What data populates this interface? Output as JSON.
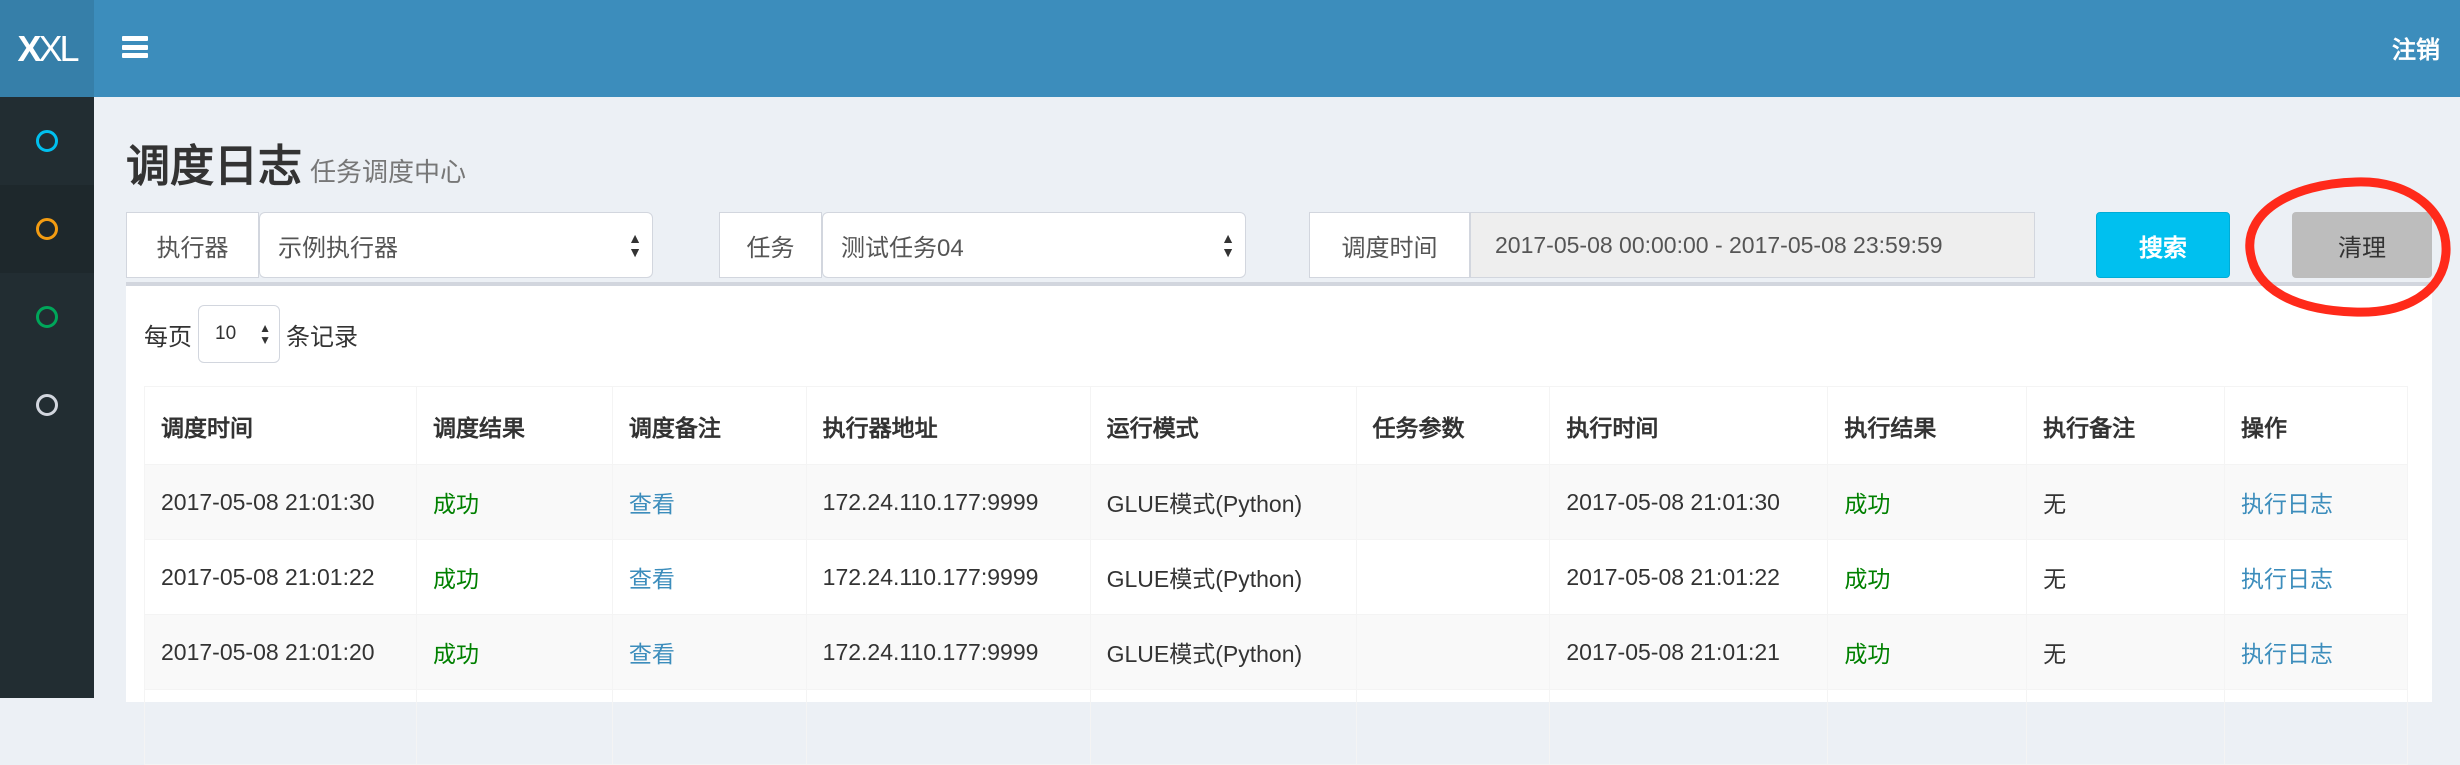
{
  "header": {
    "logo_bold": "X",
    "logo_rest": "XL",
    "logout": "注销"
  },
  "sidebar": {
    "items": [
      {
        "icon": "circle-icon",
        "color": "#00c0ef"
      },
      {
        "icon": "circle-icon",
        "color": "#f39c12"
      },
      {
        "icon": "circle-icon",
        "color": "#00a65a"
      },
      {
        "icon": "circle-icon",
        "color": "#d2d6de"
      }
    ]
  },
  "page": {
    "title": "调度日志",
    "subtitle": "任务调度中心"
  },
  "filters": {
    "executor_label": "执行器",
    "executor_value": "示例执行器",
    "job_label": "任务",
    "job_value": "测试任务04",
    "time_label": "调度时间",
    "time_value": "2017-05-08 00:00:00 - 2017-05-08 23:59:59",
    "search": "搜索",
    "clear": "清理"
  },
  "length": {
    "prefix": "每页",
    "value": "10",
    "suffix": "条记录"
  },
  "table": {
    "columns": [
      "调度时间",
      "调度结果",
      "调度备注",
      "执行器地址",
      "运行模式",
      "任务参数",
      "执行时间",
      "执行结果",
      "执行备注",
      "操作"
    ],
    "rows": [
      [
        "2017-05-08 21:01:30",
        "成功",
        "查看",
        "172.24.110.177:9999",
        "GLUE模式(Python)",
        "",
        "2017-05-08 21:01:30",
        "成功",
        "无",
        "执行日志"
      ],
      [
        "2017-05-08 21:01:22",
        "成功",
        "查看",
        "172.24.110.177:9999",
        "GLUE模式(Python)",
        "",
        "2017-05-08 21:01:22",
        "成功",
        "无",
        "执行日志"
      ],
      [
        "2017-05-08 21:01:20",
        "成功",
        "查看",
        "172.24.110.177:9999",
        "GLUE模式(Python)",
        "",
        "2017-05-08 21:01:21",
        "成功",
        "无",
        "执行日志"
      ]
    ]
  },
  "colors": {
    "header": "#3c8dbc",
    "success": "#008000",
    "link": "#3c8dbc",
    "annotation": "#ff2a1a"
  }
}
